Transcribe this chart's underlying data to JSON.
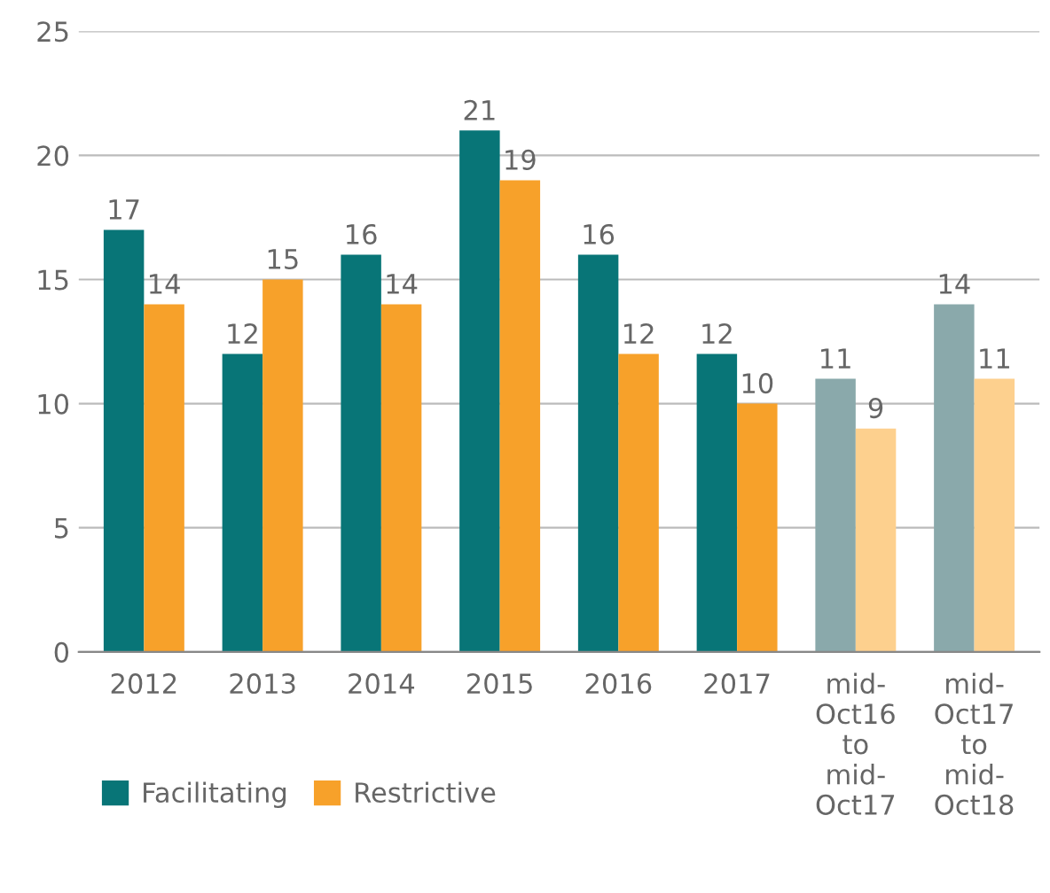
{
  "chart_data": {
    "type": "bar",
    "categories": [
      "2012",
      "2013",
      "2014",
      "2015",
      "2016",
      "2017",
      "mid-\nOct16\nto\nmid-\nOct17",
      "mid-\nOct17\nto\nmid-\nOct18"
    ],
    "series": [
      {
        "name": "Facilitating",
        "color": "#087577",
        "colors": [
          "#087577",
          "#087577",
          "#087577",
          "#087577",
          "#087577",
          "#087577",
          "#8aa9ab",
          "#8aa9ab"
        ],
        "values": [
          17,
          12,
          16,
          21,
          16,
          12,
          11,
          14
        ]
      },
      {
        "name": "Restrictive",
        "color": "#f7a12a",
        "colors": [
          "#f7a12a",
          "#f7a12a",
          "#f7a12a",
          "#f7a12a",
          "#f7a12a",
          "#f7a12a",
          "#fdd08e",
          "#fdd08e"
        ],
        "values": [
          14,
          15,
          14,
          19,
          12,
          10,
          9,
          11
        ]
      }
    ],
    "ylim": [
      0,
      25
    ],
    "yticks": [
      0,
      5,
      10,
      15,
      20,
      25
    ],
    "grid": "y",
    "legend": "bottom left",
    "data_labels": true
  }
}
